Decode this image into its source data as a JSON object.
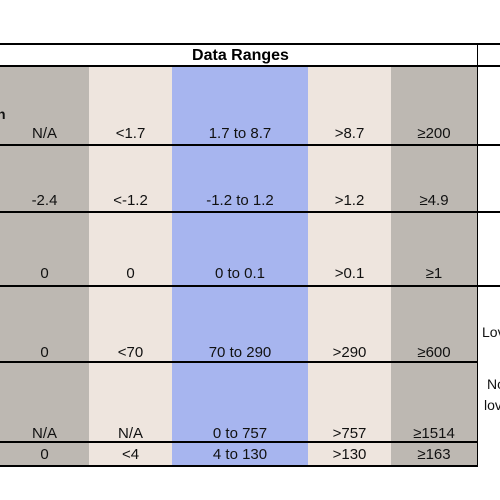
{
  "table": {
    "title": "Data Ranges",
    "rows": [
      [
        "N/A",
        "<1.7",
        "1.7 to 8.7",
        ">8.7",
        "≥200"
      ],
      [
        "-2.4",
        "<-1.2",
        "-1.2 to 1.2",
        ">1.2",
        "≥4.9"
      ],
      [
        "0",
        "0",
        "0 to 0.1",
        ">0.1",
        "≥1"
      ],
      [
        "0",
        "<70",
        "70 to 290",
        ">290",
        "≥600"
      ],
      [
        "N/A",
        "N/A",
        "0 to 757",
        ">757",
        "≥1514"
      ],
      [
        "0",
        "<4",
        "4  to 130",
        ">130",
        "≥163"
      ]
    ]
  },
  "right_fragments": [
    "Lov",
    "No",
    "lov"
  ],
  "left_fragment": "n",
  "colors": {
    "gray_band": "#bdb8b2",
    "tan_band": "#eee5de",
    "blue_band": "#a7b5ef"
  }
}
